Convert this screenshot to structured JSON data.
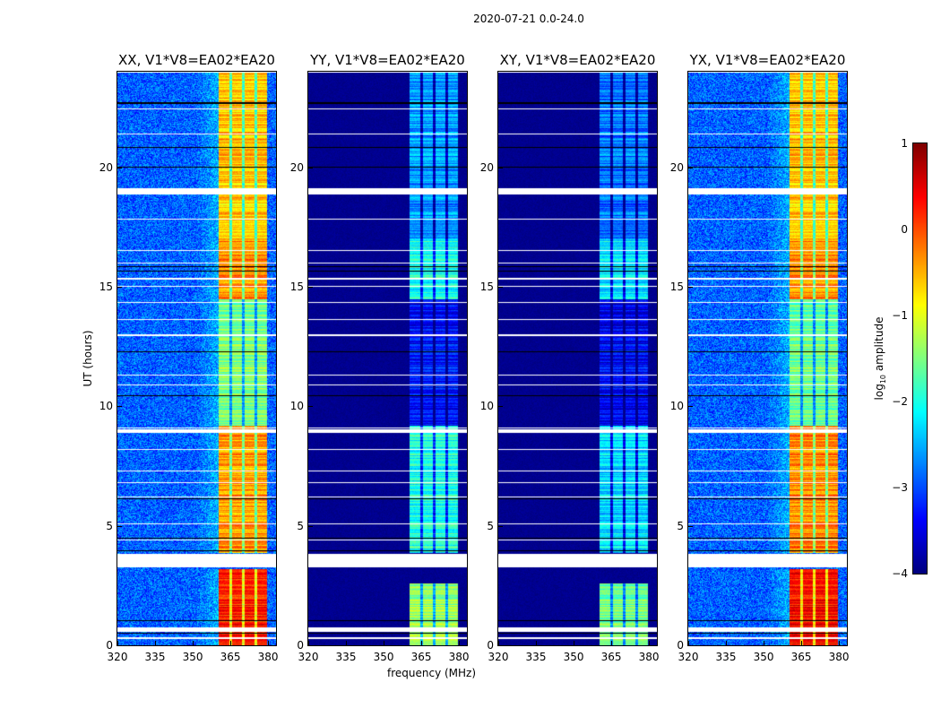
{
  "chart_data": {
    "type": "heatmap",
    "title": "2020-07-21 0.0-24.0",
    "xlabel": "frequency (MHz)",
    "ylabel": "UT (hours)",
    "xlim": [
      320,
      383.2
    ],
    "ylim": [
      0,
      24
    ],
    "xticks": [
      "320",
      "335",
      "350",
      "365",
      "380"
    ],
    "yticks": [
      "0",
      "5",
      "10",
      "15",
      "20"
    ],
    "colorbar": {
      "label": "log10 amplitude",
      "label_main": "log",
      "label_sub": "10",
      "label_rest": " amplitude",
      "range": [
        -4,
        1
      ],
      "ticks": [
        "1",
        "0",
        "−1",
        "−2",
        "−3",
        "−4"
      ],
      "colormap": "jet"
    },
    "bright_band_mhz": [
      360,
      379.5
    ],
    "flagged_hours": [
      [
        0.6,
        0.75
      ],
      [
        0.3,
        0.35
      ],
      [
        3.3,
        3.86
      ],
      [
        8.9,
        9.05
      ],
      [
        18.9,
        19.15
      ],
      [
        15.3,
        15.4
      ],
      [
        6.2,
        6.25
      ],
      [
        11.3,
        11.35
      ]
    ],
    "panels": [
      {
        "title": "XX, V1*V8=EA02*EA20",
        "background_level": -2.9,
        "band_levels": [
          [
            0,
            3.2,
            0.2
          ],
          [
            3.9,
            9.2,
            -0.4
          ],
          [
            9.2,
            14.5,
            -1.5
          ],
          [
            14.5,
            17,
            -0.3
          ],
          [
            17,
            24,
            -0.6
          ]
        ]
      },
      {
        "title": "YY, V1*V8=EA02*EA20",
        "background_level": -4,
        "band_levels": [
          [
            0,
            2.6,
            -1.4
          ],
          [
            3.9,
            9.2,
            -2.0
          ],
          [
            9.2,
            14.5,
            -3.3
          ],
          [
            14.5,
            17,
            -2.0
          ],
          [
            17,
            24,
            -2.6
          ]
        ]
      },
      {
        "title": "XY, V1*V8=EA02*EA20",
        "background_level": -4,
        "band_levels": [
          [
            0,
            2.6,
            -1.6
          ],
          [
            3.9,
            9.2,
            -2.3
          ],
          [
            9.2,
            14.5,
            -3.4
          ],
          [
            14.5,
            17,
            -2.2
          ],
          [
            17,
            24,
            -2.8
          ]
        ]
      },
      {
        "title": "YX, V1*V8=EA02*EA20",
        "background_level": -2.9,
        "band_levels": [
          [
            0,
            3.2,
            0.3
          ],
          [
            3.9,
            9.2,
            -0.3
          ],
          [
            9.2,
            14.5,
            -1.6
          ],
          [
            14.5,
            17,
            -0.3
          ],
          [
            17,
            24,
            -0.6
          ]
        ]
      }
    ]
  }
}
